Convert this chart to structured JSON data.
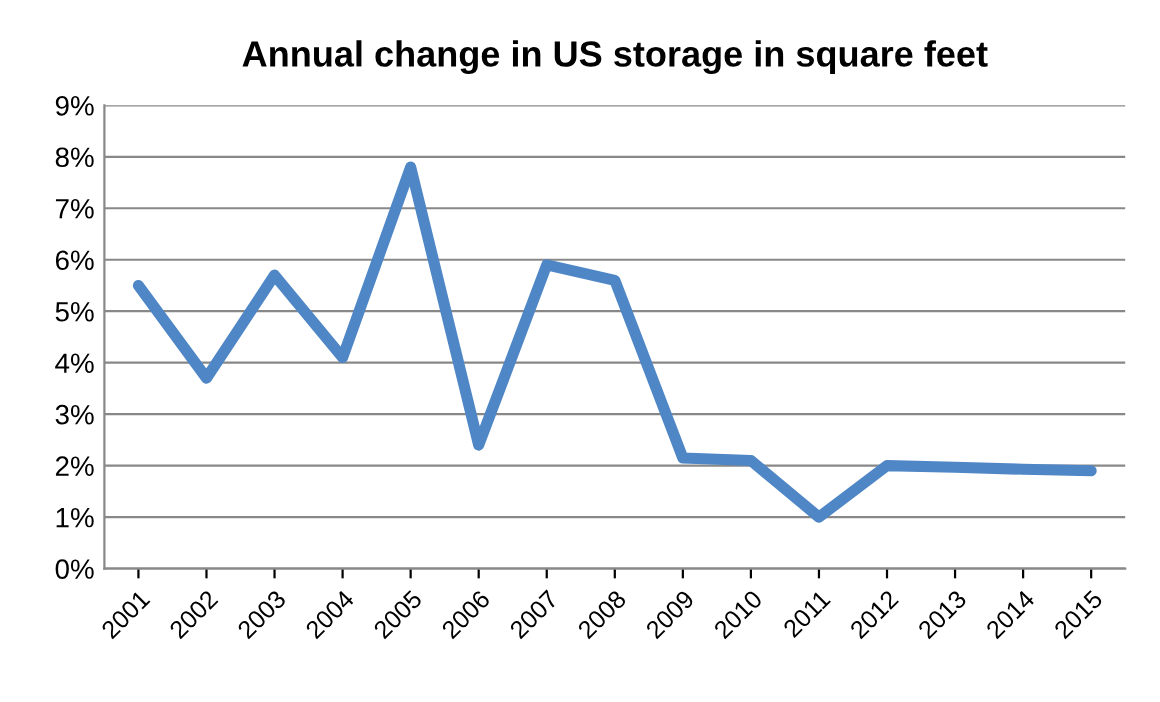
{
  "chart_data": {
    "type": "line",
    "title": "Annual change in US storage in square feet",
    "categories": [
      "2001",
      "2002",
      "2003",
      "2004",
      "2005",
      "2006",
      "2007",
      "2008",
      "2009",
      "2010",
      "2011",
      "2012",
      "2013",
      "2014",
      "2015"
    ],
    "series": [
      {
        "color": "#4f86c6",
        "values": [
          5.5,
          3.7,
          5.7,
          4.1,
          7.8,
          2.4,
          5.9,
          5.6,
          2.15,
          2.1,
          1.0,
          2.0,
          1.97,
          1.93,
          1.9
        ]
      }
    ],
    "ylim": [
      0,
      9
    ],
    "yticks": [
      {
        "value": 0,
        "label": "0%"
      },
      {
        "value": 1,
        "label": "1%"
      },
      {
        "value": 2,
        "label": "2%"
      },
      {
        "value": 3,
        "label": "3%"
      },
      {
        "value": 4,
        "label": "4%"
      },
      {
        "value": 5,
        "label": "5%"
      },
      {
        "value": 6,
        "label": "6%"
      },
      {
        "value": 7,
        "label": "7%"
      },
      {
        "value": 8,
        "label": "8%"
      },
      {
        "value": 9,
        "label": "9%"
      }
    ],
    "grid": "y",
    "marker": "none",
    "line_style": "solid"
  }
}
